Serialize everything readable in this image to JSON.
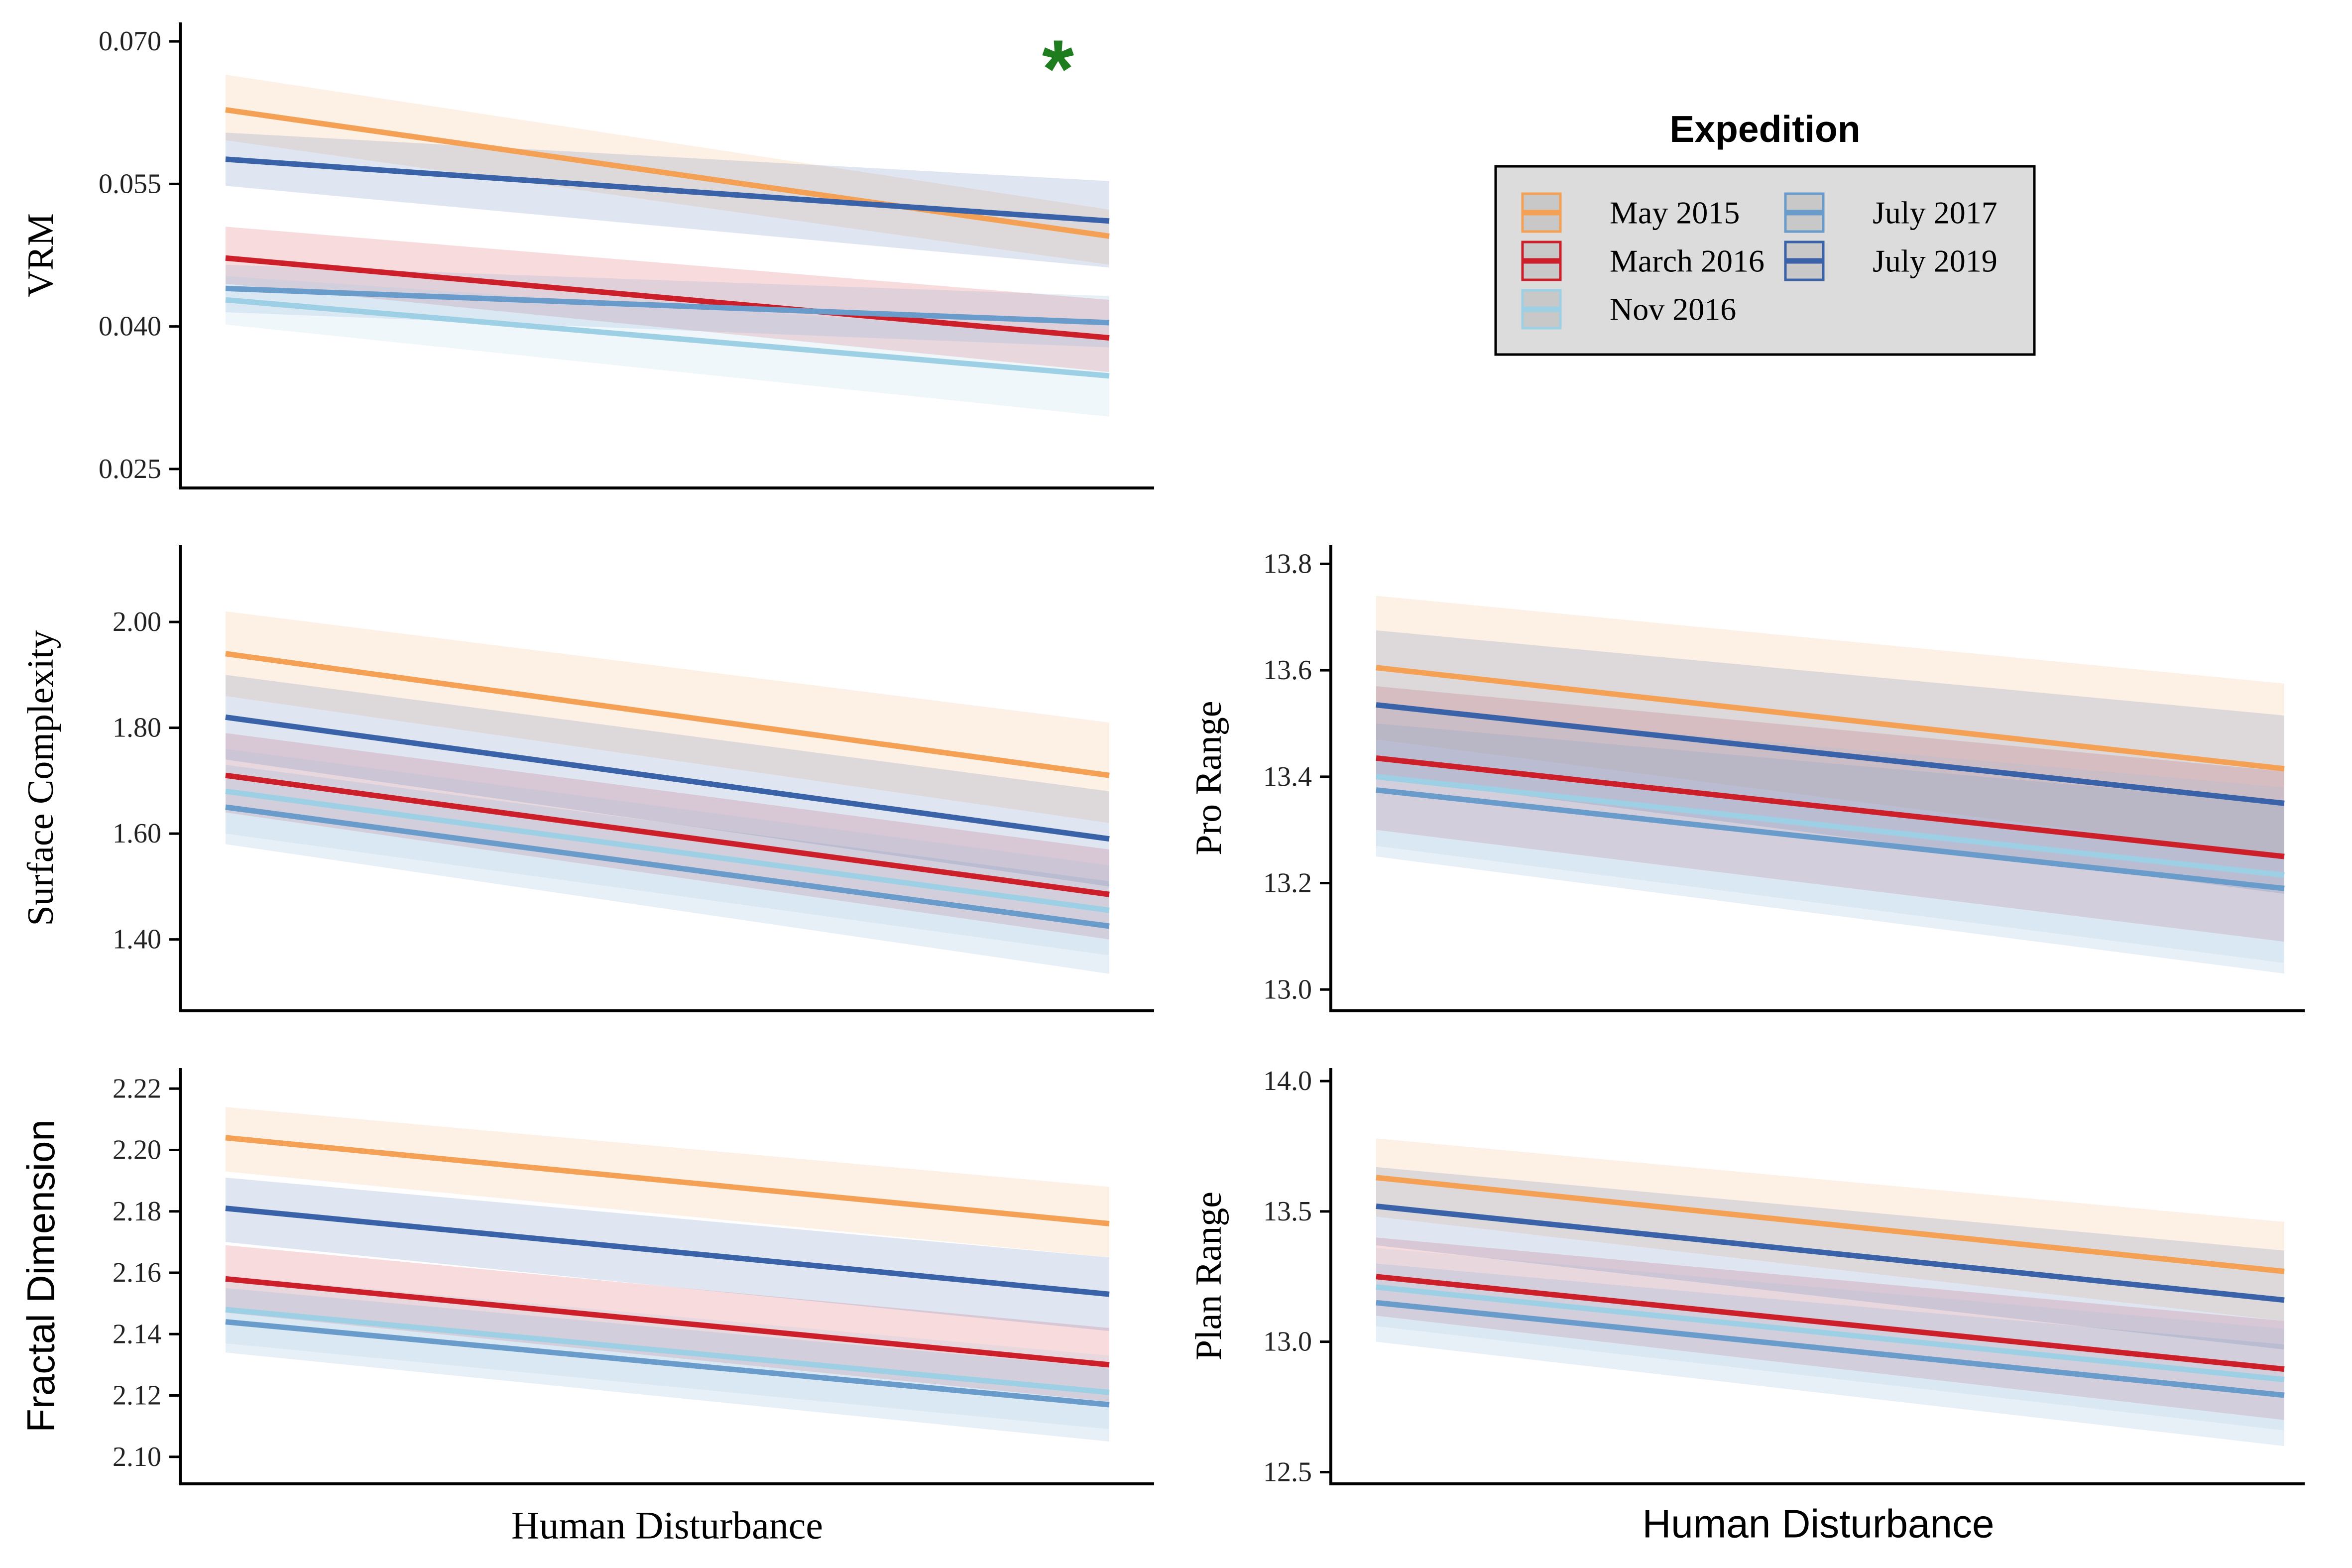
{
  "colors": {
    "May 2015": "#F4A055",
    "March 2016": "#CC1F2A",
    "Nov 2016": "#9DD0E4",
    "July 2017": "#6A9CCB",
    "July 2019": "#3A62A8",
    "marker": "#1E7D1E"
  },
  "legend": {
    "title": "Expedition",
    "items": [
      "May 2015",
      "March 2016",
      "Nov 2016",
      "July 2017",
      "July 2019"
    ]
  },
  "bottom_labels": {
    "left": "Human Disturbance",
    "right": "Human Disturbance"
  },
  "chart_data": [
    {
      "type": "line",
      "panel": "top-left",
      "ylabel": "VRM",
      "xlabel": "",
      "ylim": [
        0.023,
        0.072
      ],
      "yticks": [
        "0.025",
        "0.040",
        "0.055",
        "0.070"
      ],
      "yticks_values": [
        0.025,
        0.04,
        0.055,
        0.07
      ],
      "annotation": "*",
      "x": [
        0,
        1
      ],
      "series": [
        {
          "name": "May 2015",
          "values": [
            0.0628,
            0.0495
          ],
          "lower": [
            0.0596,
            0.0465
          ],
          "upper": [
            0.0665,
            0.0523
          ]
        },
        {
          "name": "March 2016",
          "values": [
            0.0472,
            0.0388
          ],
          "lower": [
            0.0445,
            0.0352
          ],
          "upper": [
            0.0505,
            0.0428
          ]
        },
        {
          "name": "Nov 2016",
          "values": [
            0.0428,
            0.0348
          ],
          "lower": [
            0.0402,
            0.0305
          ],
          "upper": [
            0.0453,
            0.039
          ]
        },
        {
          "name": "July 2017",
          "values": [
            0.044,
            0.0404
          ],
          "lower": [
            0.0415,
            0.0378
          ],
          "upper": [
            0.0465,
            0.0432
          ]
        },
        {
          "name": "July 2019",
          "values": [
            0.0576,
            0.0511
          ],
          "lower": [
            0.0548,
            0.0462
          ],
          "upper": [
            0.0604,
            0.0553
          ]
        }
      ]
    },
    {
      "type": "line",
      "panel": "middle-left",
      "ylabel": "Surface Complexity",
      "xlabel": "",
      "ylim": [
        1.265,
        2.145
      ],
      "yticks": [
        "1.40",
        "1.60",
        "1.80",
        "2.00"
      ],
      "yticks_values": [
        1.4,
        1.6,
        1.8,
        2.0
      ],
      "x": [
        0,
        1
      ],
      "series": [
        {
          "name": "May 2015",
          "values": [
            1.94,
            1.71
          ],
          "lower": [
            1.86,
            1.62
          ],
          "upper": [
            2.02,
            1.81
          ]
        },
        {
          "name": "March 2016",
          "values": [
            1.71,
            1.485
          ],
          "lower": [
            1.64,
            1.4
          ],
          "upper": [
            1.79,
            1.57
          ]
        },
        {
          "name": "Nov 2016",
          "values": [
            1.68,
            1.455
          ],
          "lower": [
            1.6,
            1.37
          ],
          "upper": [
            1.76,
            1.54
          ]
        },
        {
          "name": "July 2017",
          "values": [
            1.65,
            1.425
          ],
          "lower": [
            1.58,
            1.335
          ],
          "upper": [
            1.73,
            1.51
          ]
        },
        {
          "name": "July 2019",
          "values": [
            1.82,
            1.59
          ],
          "lower": [
            1.74,
            1.5
          ],
          "upper": [
            1.9,
            1.68
          ]
        }
      ]
    },
    {
      "type": "line",
      "panel": "middle-right",
      "ylabel": "Pro Range",
      "xlabel": "",
      "ylim": [
        12.96,
        13.835
      ],
      "yticks": [
        "13.0",
        "13.2",
        "13.4",
        "13.6",
        "13.8"
      ],
      "yticks_values": [
        13.0,
        13.2,
        13.4,
        13.6,
        13.8
      ],
      "x": [
        0,
        1
      ],
      "series": [
        {
          "name": "May 2015",
          "values": [
            13.605,
            13.415
          ],
          "lower": [
            13.47,
            13.25
          ],
          "upper": [
            13.74,
            13.575
          ]
        },
        {
          "name": "March 2016",
          "values": [
            13.435,
            13.25
          ],
          "lower": [
            13.3,
            13.09
          ],
          "upper": [
            13.57,
            13.41
          ]
        },
        {
          "name": "Nov 2016",
          "values": [
            13.4,
            13.215
          ],
          "lower": [
            13.27,
            13.05
          ],
          "upper": [
            13.53,
            13.38
          ]
        },
        {
          "name": "July 2017",
          "values": [
            13.375,
            13.19
          ],
          "lower": [
            13.25,
            13.03
          ],
          "upper": [
            13.5,
            13.35
          ]
        },
        {
          "name": "July 2019",
          "values": [
            13.535,
            13.35
          ],
          "lower": [
            13.4,
            13.18
          ],
          "upper": [
            13.675,
            13.515
          ]
        }
      ]
    },
    {
      "type": "line",
      "panel": "bottom-left",
      "ylabel": "Fractal Dimension",
      "xlabel": "",
      "ylim": [
        2.0912,
        2.2267
      ],
      "yticks": [
        "2.10",
        "2.12",
        "2.14",
        "2.16",
        "2.18",
        "2.20",
        "2.22"
      ],
      "yticks_values": [
        2.1,
        2.12,
        2.14,
        2.16,
        2.18,
        2.2,
        2.22
      ],
      "x": [
        0,
        1
      ],
      "series": [
        {
          "name": "May 2015",
          "values": [
            2.204,
            2.176
          ],
          "lower": [
            2.193,
            2.165
          ],
          "upper": [
            2.214,
            2.188
          ]
        },
        {
          "name": "March 2016",
          "values": [
            2.158,
            2.13
          ],
          "lower": [
            2.147,
            2.118
          ],
          "upper": [
            2.169,
            2.142
          ]
        },
        {
          "name": "Nov 2016",
          "values": [
            2.148,
            2.121
          ],
          "lower": [
            2.137,
            2.109
          ],
          "upper": [
            2.159,
            2.133
          ]
        },
        {
          "name": "July 2017",
          "values": [
            2.144,
            2.117
          ],
          "lower": [
            2.134,
            2.105
          ],
          "upper": [
            2.155,
            2.129
          ]
        },
        {
          "name": "July 2019",
          "values": [
            2.181,
            2.153
          ],
          "lower": [
            2.17,
            2.141
          ],
          "upper": [
            2.191,
            2.165
          ]
        }
      ]
    },
    {
      "type": "line",
      "panel": "bottom-right",
      "ylabel": "Plan Range",
      "xlabel": "",
      "ylim": [
        12.455,
        14.05
      ],
      "yticks": [
        "12.5",
        "13.0",
        "13.5",
        "14.0"
      ],
      "yticks_values": [
        12.5,
        13.0,
        13.5,
        14.0
      ],
      "x": [
        0,
        1
      ],
      "series": [
        {
          "name": "May 2015",
          "values": [
            13.63,
            13.27
          ],
          "lower": [
            13.48,
            13.08
          ],
          "upper": [
            13.78,
            13.46
          ]
        },
        {
          "name": "March 2016",
          "values": [
            13.25,
            12.895
          ],
          "lower": [
            13.1,
            12.7
          ],
          "upper": [
            13.4,
            13.08
          ]
        },
        {
          "name": "Nov 2016",
          "values": [
            13.21,
            12.855
          ],
          "lower": [
            13.06,
            12.66
          ],
          "upper": [
            13.36,
            13.05
          ]
        },
        {
          "name": "July 2017",
          "values": [
            13.15,
            12.795
          ],
          "lower": [
            13.0,
            12.6
          ],
          "upper": [
            13.3,
            12.99
          ]
        },
        {
          "name": "July 2019",
          "values": [
            13.52,
            13.16
          ],
          "lower": [
            13.37,
            12.97
          ],
          "upper": [
            13.67,
            13.35
          ]
        }
      ]
    }
  ]
}
